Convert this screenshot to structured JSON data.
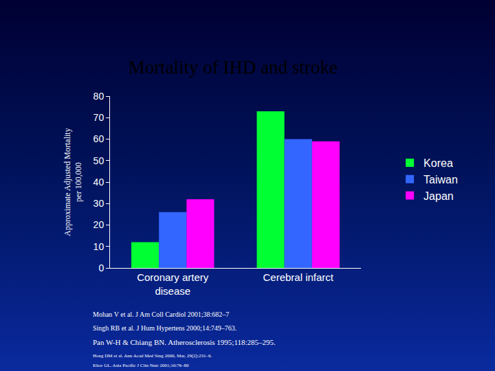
{
  "chart_data": {
    "type": "bar",
    "title": "Mortality of IHD and stroke",
    "y_label": "Approximate Adjusted Mortality per 100,000",
    "categories": [
      "Coronary artery disease",
      "Cerebral infarct"
    ],
    "series": [
      {
        "name": "Korea",
        "color": "#00ff33",
        "values": [
          12,
          73
        ]
      },
      {
        "name": "Taiwan",
        "color": "#3366ff",
        "values": [
          26,
          60
        ]
      },
      {
        "name": "Japan",
        "color": "#ff00ff",
        "values": [
          32,
          59
        ]
      }
    ],
    "ylim": [
      0,
      80
    ],
    "yticks": [
      0,
      10,
      20,
      30,
      40,
      50,
      60,
      70,
      80
    ],
    "grid": false,
    "legend": "right",
    "annotations": [
      "Mohan V et al. J Am Coll Cardiol 2001;38:682–7",
      "Singh RB et al. J Hum Hypertens 2000;14:749–763.",
      "Pan W-H & Chiang BN. Atherosclerosis 1995;118:285–295.",
      "Hong DM et al. Ann Acad Med Sing 2000, Mar, 29(2):231–6.",
      "Khor GL. Asia Pacific J Clin Nutr 2001;10:76–80"
    ]
  }
}
